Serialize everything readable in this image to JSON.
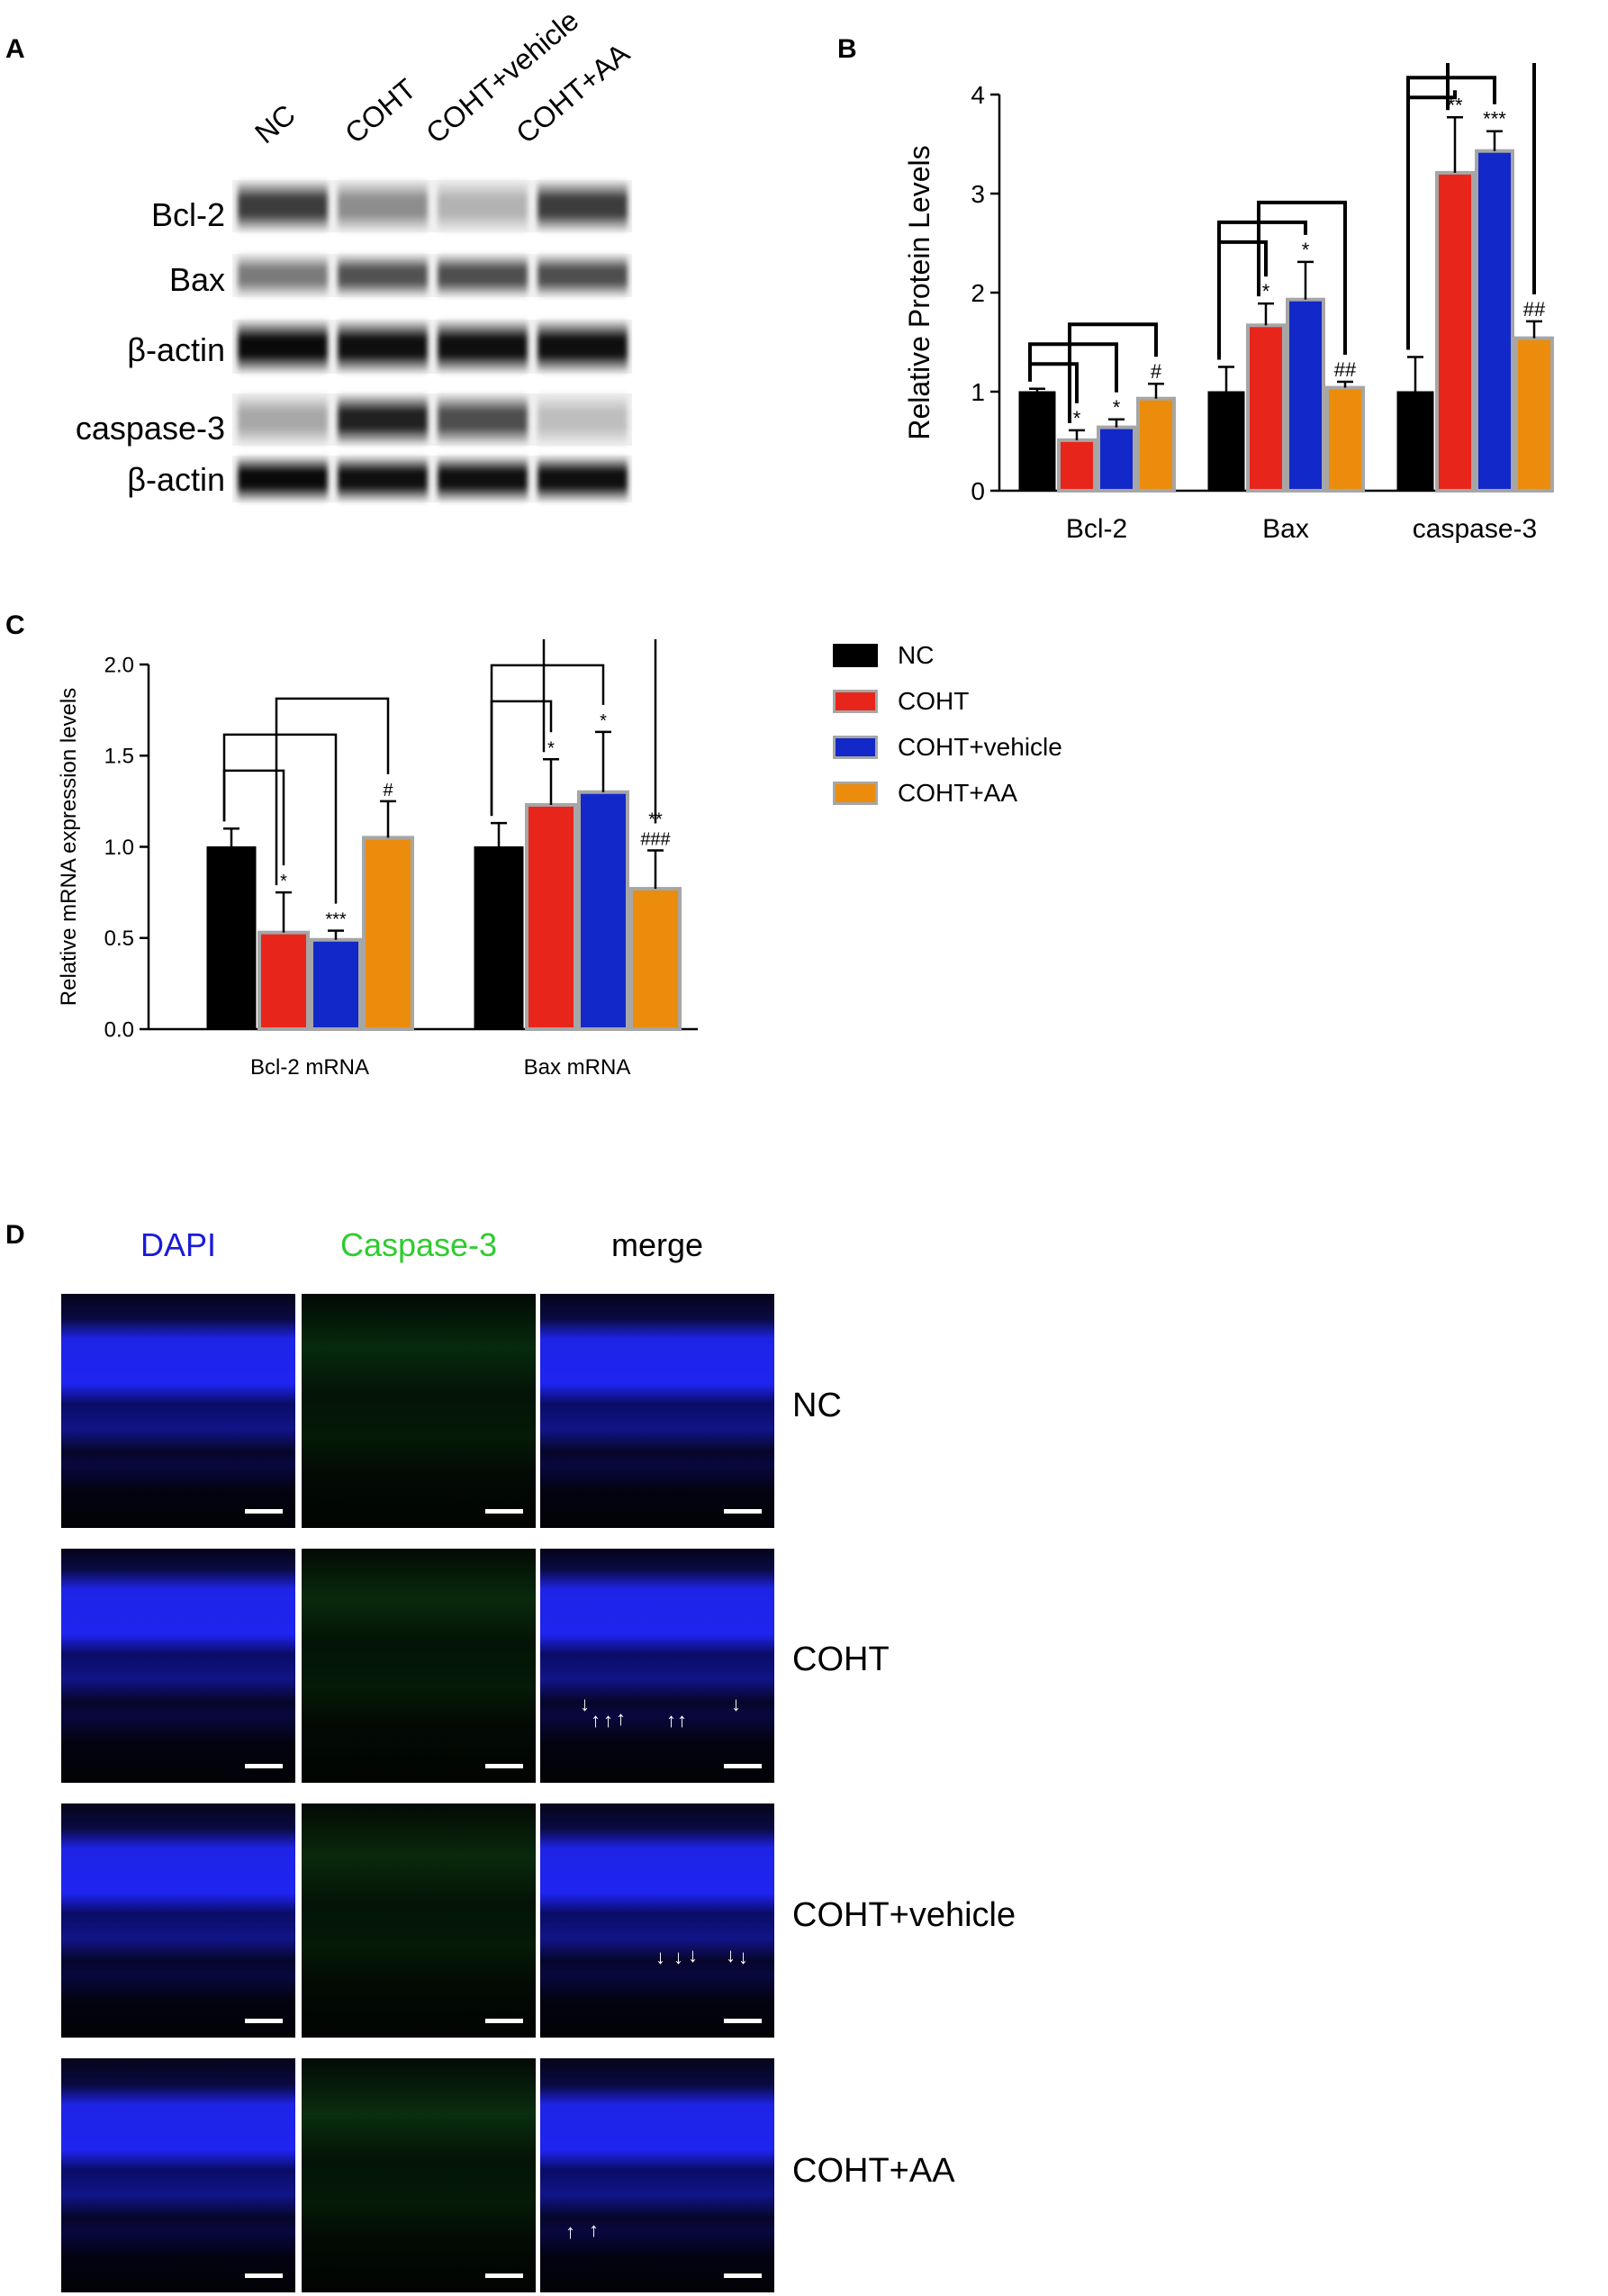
{
  "panel_letters": {
    "a": "A",
    "b": "B",
    "c": "C",
    "d": "D"
  },
  "blot": {
    "lanes": [
      "NC",
      "COHT",
      "COHT+vehicle",
      "COHT+AA"
    ],
    "rows": [
      {
        "label": "Bcl-2",
        "intensity": [
          0.78,
          0.42,
          0.25,
          0.78
        ]
      },
      {
        "label": "Bax",
        "intensity": [
          0.5,
          0.68,
          0.7,
          0.7
        ]
      },
      {
        "label": "β-actin",
        "intensity": [
          1.0,
          0.98,
          0.98,
          0.98
        ]
      },
      {
        "label": "caspase-3",
        "intensity": [
          0.3,
          0.9,
          0.7,
          0.2
        ]
      },
      {
        "label": "β-actin",
        "intensity": [
          1.0,
          0.98,
          0.98,
          0.98
        ]
      }
    ]
  },
  "colors": {
    "NC": "#000000",
    "COHT": "#e8251b",
    "COHT+vehicle": "#1228c9",
    "COHT+AA": "#eb8c0c",
    "bar_outline": "#a6a6a6"
  },
  "legend": [
    "NC",
    "COHT",
    "COHT+vehicle",
    "COHT+AA"
  ],
  "chart_data": [
    {
      "type": "bar",
      "panel": "B",
      "ylabel": "Relative Protein Levels",
      "ylim": [
        0,
        4
      ],
      "yticks": [
        "0",
        "1",
        "2",
        "3",
        "4"
      ],
      "categories": [
        "Bcl-2",
        "Bax",
        "caspase-3"
      ],
      "series": [
        {
          "name": "NC",
          "values": [
            1.0,
            1.0,
            1.0
          ],
          "errors": [
            0.03,
            0.25,
            0.35
          ]
        },
        {
          "name": "COHT",
          "values": [
            0.51,
            1.67,
            3.21
          ],
          "errors": [
            0.1,
            0.22,
            0.56
          ]
        },
        {
          "name": "COHT+vehicle",
          "values": [
            0.64,
            1.93,
            3.43
          ],
          "errors": [
            0.08,
            0.38,
            0.2
          ]
        },
        {
          "name": "COHT+AA",
          "values": [
            0.93,
            1.04,
            1.54
          ],
          "errors": [
            0.15,
            0.06,
            0.17
          ]
        }
      ],
      "annotations": [
        [
          "",
          "*",
          "*",
          "#"
        ],
        [
          "",
          "*",
          "*",
          "##"
        ],
        [
          "",
          "**",
          "***",
          "##"
        ]
      ]
    },
    {
      "type": "bar",
      "panel": "C",
      "ylabel": "Relative mRNA expression levels",
      "ylim": [
        0,
        2.0
      ],
      "yticks": [
        "0.0",
        "0.5",
        "1.0",
        "1.5",
        "2.0"
      ],
      "categories": [
        "Bcl-2 mRNA",
        "Bax mRNA"
      ],
      "series": [
        {
          "name": "NC",
          "values": [
            1.0,
            1.0
          ],
          "errors": [
            0.1,
            0.13
          ]
        },
        {
          "name": "COHT",
          "values": [
            0.53,
            1.23
          ],
          "errors": [
            0.22,
            0.25
          ]
        },
        {
          "name": "COHT+vehicle",
          "values": [
            0.49,
            1.3
          ],
          "errors": [
            0.05,
            0.33
          ]
        },
        {
          "name": "COHT+AA",
          "values": [
            1.05,
            0.77
          ],
          "errors": [
            0.2,
            0.21
          ]
        }
      ],
      "annotations": [
        [
          "",
          "*",
          "***",
          "#"
        ],
        [
          "",
          "*",
          "*",
          "**\n###"
        ]
      ]
    }
  ],
  "if_panel": {
    "columns": [
      {
        "label": "DAPI",
        "color": "#1a1adb"
      },
      {
        "label": "Caspase-3",
        "color": "#2ecc2e"
      },
      {
        "label": "merge",
        "color": "#000000"
      }
    ],
    "rows": [
      "NC",
      "COHT",
      "COHT+vehicle",
      "COHT+AA"
    ]
  }
}
